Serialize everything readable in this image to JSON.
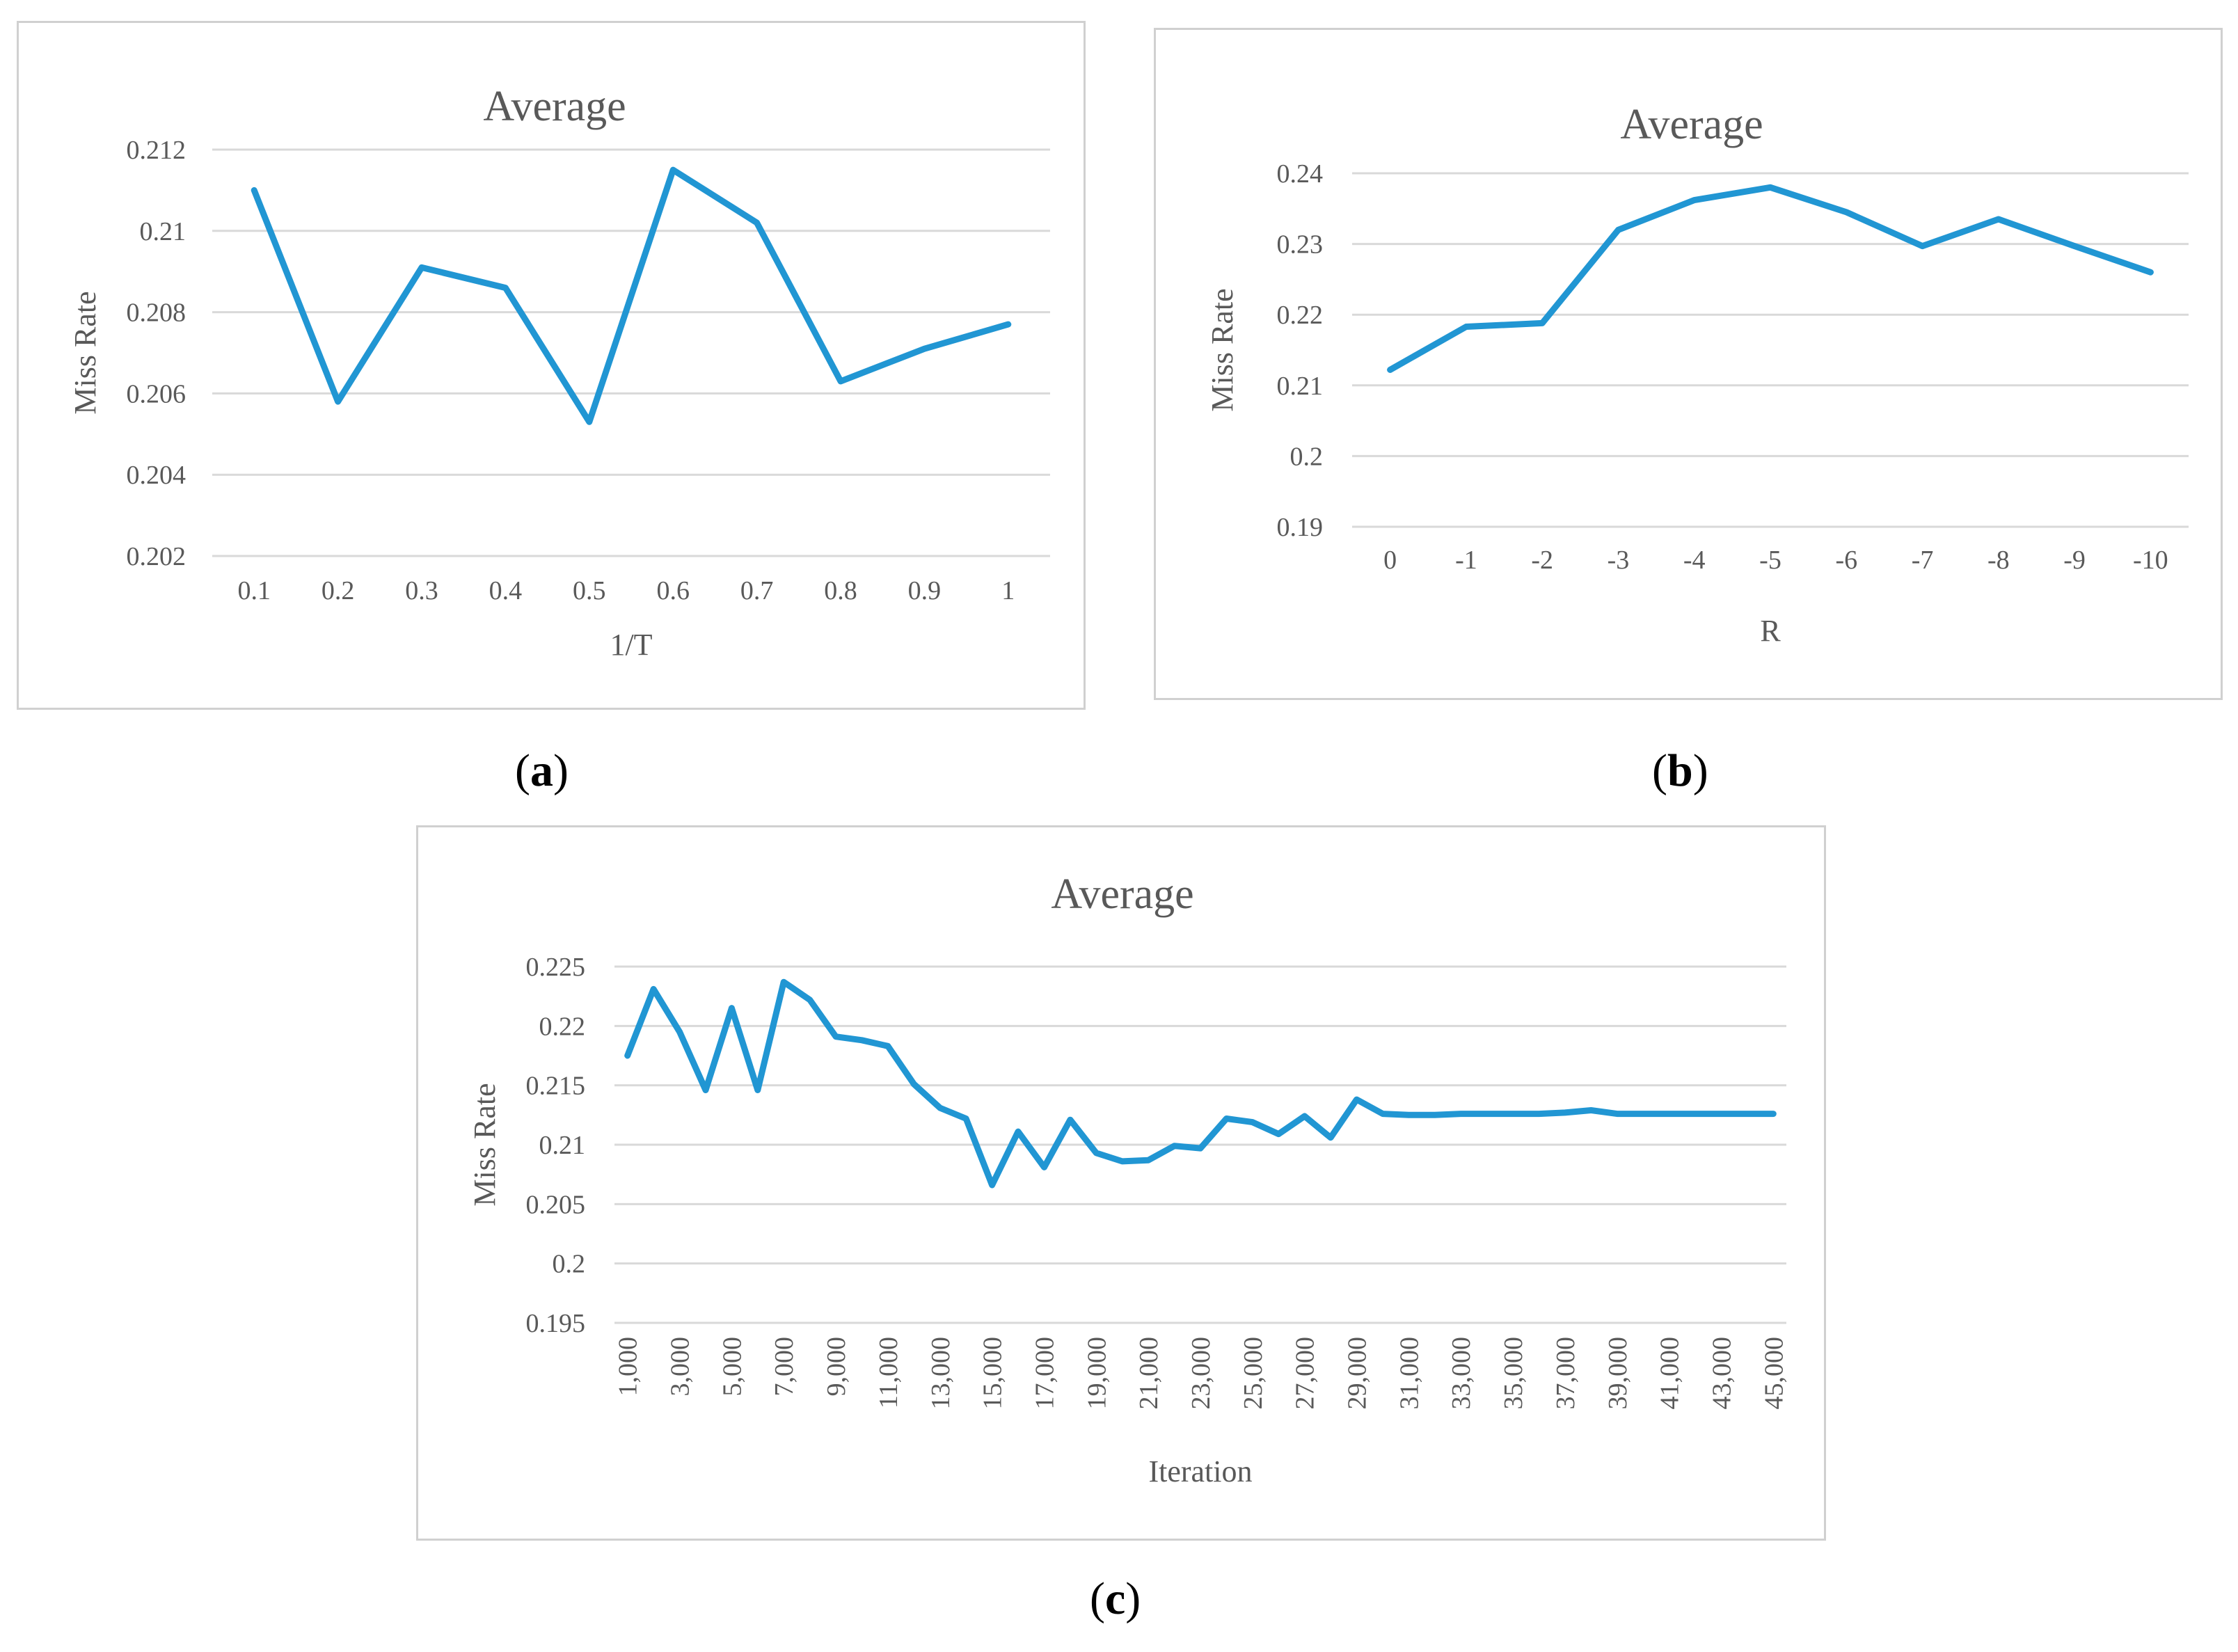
{
  "chart_data": [
    {
      "id": "a",
      "type": "line",
      "title": "Average",
      "xlabel": "1/T",
      "ylabel": "Miss Rate",
      "categories": [
        "0.1",
        "0.2",
        "0.3",
        "0.4",
        "0.5",
        "0.6",
        "0.7",
        "0.8",
        "0.9",
        "1"
      ],
      "series": [
        {
          "name": "Average",
          "values": [
            0.211,
            0.2058,
            0.2091,
            0.2086,
            0.2053,
            0.2115,
            0.2102,
            0.2063,
            0.2071,
            0.2077
          ]
        }
      ],
      "yticks": [
        0.202,
        0.204,
        0.206,
        0.208,
        0.21,
        0.212
      ],
      "ytick_labels": [
        "0.202",
        "0.204",
        "0.206",
        "0.208",
        "0.21",
        "0.212"
      ],
      "ylim": [
        0.202,
        0.212
      ],
      "grid": true
    },
    {
      "id": "b",
      "type": "line",
      "title": "Average",
      "xlabel": "R",
      "ylabel": "Miss Rate",
      "categories": [
        "0",
        "-1",
        "-2",
        "-3",
        "-4",
        "-5",
        "-6",
        "-7",
        "-8",
        "-9",
        "-10"
      ],
      "series": [
        {
          "name": "Average",
          "values": [
            0.2122,
            0.2183,
            0.2188,
            0.232,
            0.2362,
            0.238,
            0.2345,
            0.2297,
            0.2335,
            0.2297,
            0.226
          ]
        }
      ],
      "yticks": [
        0.19,
        0.2,
        0.21,
        0.22,
        0.23,
        0.24
      ],
      "ytick_labels": [
        "0.19",
        "0.2",
        "0.21",
        "0.22",
        "0.23",
        "0.24"
      ],
      "ylim": [
        0.19,
        0.24
      ],
      "grid": true
    },
    {
      "id": "c",
      "type": "line",
      "title": "Average",
      "xlabel": "Iteration",
      "ylabel": "Miss Rate",
      "categories": [
        "1,000",
        "2,000",
        "3,000",
        "4,000",
        "5,000",
        "6,000",
        "7,000",
        "8,000",
        "9,000",
        "10,000",
        "11,000",
        "12,000",
        "13,000",
        "14,000",
        "15,000",
        "16,000",
        "17,000",
        "18,000",
        "19,000",
        "20,000",
        "21,000",
        "22,000",
        "23,000",
        "24,000",
        "25,000",
        "26,000",
        "27,000",
        "28,000",
        "29,000",
        "30,000",
        "31,000",
        "32,000",
        "33,000",
        "34,000",
        "35,000",
        "36,000",
        "37,000",
        "38,000",
        "39,000",
        "40,000",
        "41,000",
        "42,000",
        "43,000",
        "44,000",
        "45,000"
      ],
      "tick_labels": [
        "1,000",
        "3,000",
        "5,000",
        "7,000",
        "9,000",
        "11,000",
        "13,000",
        "15,000",
        "17,000",
        "19,000",
        "21,000",
        "23,000",
        "25,000",
        "27,000",
        "29,000",
        "31,000",
        "33,000",
        "35,000",
        "37,000",
        "39,000",
        "41,000",
        "43,000",
        "45,000"
      ],
      "series": [
        {
          "name": "Average",
          "values": [
            0.2175,
            0.2231,
            0.2195,
            0.2146,
            0.2215,
            0.2146,
            0.2237,
            0.2222,
            0.2191,
            0.2188,
            0.2183,
            0.2151,
            0.2131,
            0.2122,
            0.2066,
            0.2111,
            0.2081,
            0.2121,
            0.2093,
            0.2086,
            0.2087,
            0.2099,
            0.2097,
            0.2122,
            0.2119,
            0.2109,
            0.2124,
            0.2106,
            0.2138,
            0.2126,
            0.2125,
            0.2125,
            0.2126,
            0.2126,
            0.2126,
            0.2126,
            0.2127,
            0.2129,
            0.2126,
            0.2126,
            0.2126,
            0.2126,
            0.2126,
            0.2126,
            0.2126
          ]
        }
      ],
      "yticks": [
        0.195,
        0.2,
        0.205,
        0.21,
        0.215,
        0.22,
        0.225
      ],
      "ytick_labels": [
        "0.195",
        "0.2",
        "0.205",
        "0.21",
        "0.215",
        "0.22",
        "0.225"
      ],
      "ylim": [
        0.195,
        0.225
      ],
      "grid": true
    }
  ],
  "captions": {
    "a": {
      "open": "(",
      "letter": "a",
      "close": ")"
    },
    "b": {
      "open": "(",
      "letter": "b",
      "close": ")"
    },
    "c": {
      "open": "(",
      "letter": "c",
      "close": ")"
    }
  },
  "colors": {
    "series": "#2196d3",
    "grid": "#d9d9d9",
    "text": "#595959",
    "border": "#d0d0d0"
  }
}
